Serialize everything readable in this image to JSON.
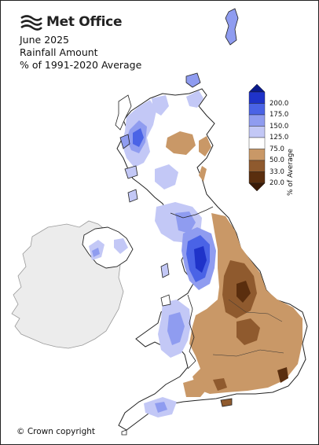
{
  "brand": {
    "name": "Met Office",
    "icon": "met-office-logo-icon"
  },
  "title": {
    "line1": "June 2025",
    "line2": "Rainfall Amount",
    "line3": "% of 1991-2020 Average"
  },
  "legend": {
    "axis_label": "% of Average",
    "bins": [
      {
        "label": "200.0",
        "color": "#1f33c9"
      },
      {
        "label": "175.0",
        "color": "#4a63e6"
      },
      {
        "label": "150.0",
        "color": "#8f9cf0"
      },
      {
        "label": "125.0",
        "color": "#c3c8f6"
      },
      {
        "label": "75.0",
        "color": "#ffffff"
      },
      {
        "label": "50.0",
        "color": "#c99867"
      },
      {
        "label": "33.0",
        "color": "#8f5a2e"
      },
      {
        "label": "20.0",
        "color": "#5a2e0e"
      }
    ],
    "top_cap_color": "#0a1a8a",
    "bottom_cap_color": "#3a1a06"
  },
  "map": {
    "land_background": "#ffffff",
    "ireland_fill": "#ececec",
    "coast_color": "#222222"
  },
  "footer": {
    "copyright": "© Crown copyright"
  }
}
